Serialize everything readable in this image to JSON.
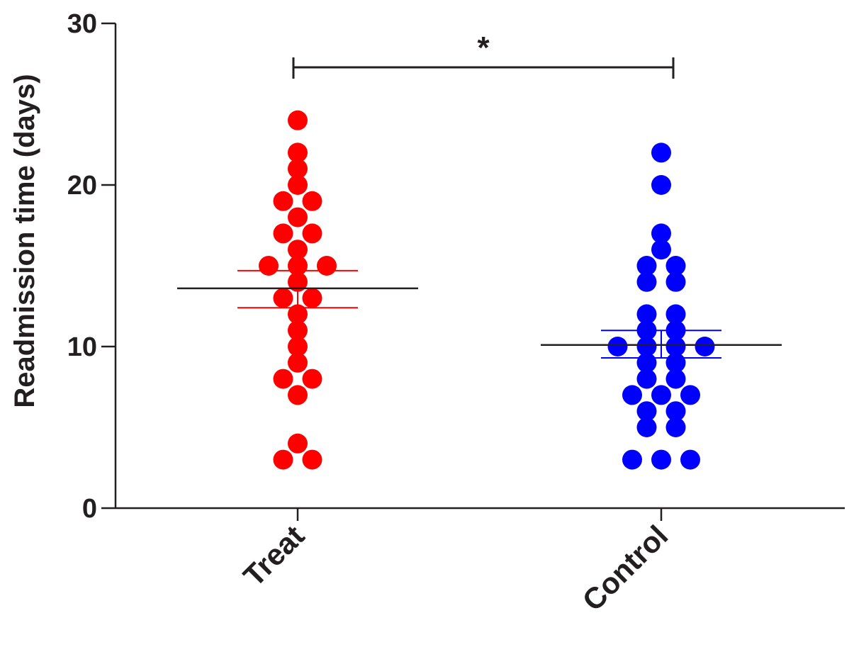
{
  "chart_data": {
    "type": "scatter",
    "title": "",
    "xlabel": "",
    "ylabel": "Readmission time (days)",
    "ylim": [
      0,
      30
    ],
    "yticks": [
      0,
      10,
      20,
      30
    ],
    "categories": [
      "Treat",
      "Control"
    ],
    "series": [
      {
        "name": "Treat",
        "color": "#ff0000",
        "values": [
          24,
          22,
          21,
          20,
          19,
          19,
          18,
          17,
          17,
          16,
          15,
          15,
          15,
          14,
          13,
          13,
          12,
          11,
          10,
          9,
          8,
          8,
          7,
          4,
          3,
          3
        ],
        "mean": 13.6,
        "sem": [
          12.4,
          14.7
        ]
      },
      {
        "name": "Control",
        "color": "#0000ff",
        "values": [
          22,
          20,
          17,
          16,
          15,
          15,
          14,
          14,
          12,
          12,
          11,
          11,
          10,
          10,
          10,
          10,
          9,
          9,
          8,
          8,
          7,
          7,
          7,
          6,
          6,
          5,
          5,
          3,
          3,
          3
        ],
        "mean": 10.1,
        "sem": [
          9.3,
          11.0
        ]
      }
    ],
    "significance": {
      "between": [
        "Treat",
        "Control"
      ],
      "label": "*"
    },
    "grid": false,
    "legend": "none"
  }
}
